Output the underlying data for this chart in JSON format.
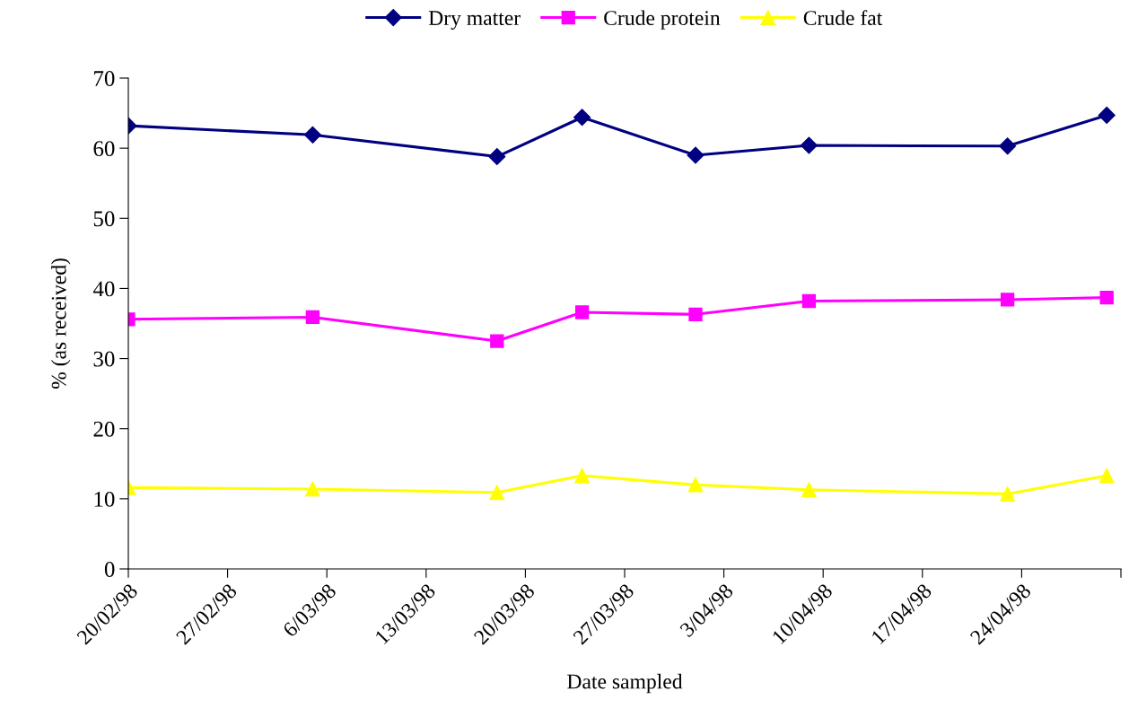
{
  "chart_data": {
    "type": "line",
    "xlabel": "Date sampled",
    "ylabel": "% (as received)",
    "x": [
      "1998-02-20",
      "1998-03-05",
      "1998-03-18",
      "1998-03-24",
      "1998-04-01",
      "1998-04-09",
      "1998-04-23",
      "1998-04-30"
    ],
    "series": [
      {
        "name": "Dry matter",
        "color": "#000080",
        "marker": "diamond",
        "values": [
          63.2,
          61.9,
          58.8,
          64.4,
          59.0,
          60.4,
          60.3,
          64.7
        ]
      },
      {
        "name": "Crude protein",
        "color": "#ff00ff",
        "marker": "square",
        "values": [
          35.6,
          35.9,
          32.5,
          36.6,
          36.3,
          38.2,
          38.4,
          38.7
        ]
      },
      {
        "name": "Crude fat",
        "color": "#ffff00",
        "marker": "triangle",
        "values": [
          11.6,
          11.4,
          10.9,
          13.3,
          12.0,
          11.3,
          10.7,
          13.3
        ]
      }
    ],
    "xlim": [
      "1998-02-20",
      "1998-05-01"
    ],
    "xticks": [
      {
        "value": "1998-02-20",
        "label": "20/02/98"
      },
      {
        "value": "1998-02-27",
        "label": "27/02/98"
      },
      {
        "value": "1998-03-06",
        "label": "6/03/98"
      },
      {
        "value": "1998-03-13",
        "label": "13/03/98"
      },
      {
        "value": "1998-03-20",
        "label": "20/03/98"
      },
      {
        "value": "1998-03-27",
        "label": "27/03/98"
      },
      {
        "value": "1998-04-03",
        "label": "3/04/98"
      },
      {
        "value": "1998-04-10",
        "label": "10/04/98"
      },
      {
        "value": "1998-04-17",
        "label": "17/04/98"
      },
      {
        "value": "1998-04-24",
        "label": "24/04/98"
      },
      {
        "value": "1998-05-01",
        "label": null
      }
    ],
    "ylim": [
      0,
      70
    ],
    "yticks": [
      0,
      10,
      20,
      30,
      40,
      50,
      60,
      70
    ],
    "grid": false,
    "legend": "top",
    "line_style": "solid"
  }
}
